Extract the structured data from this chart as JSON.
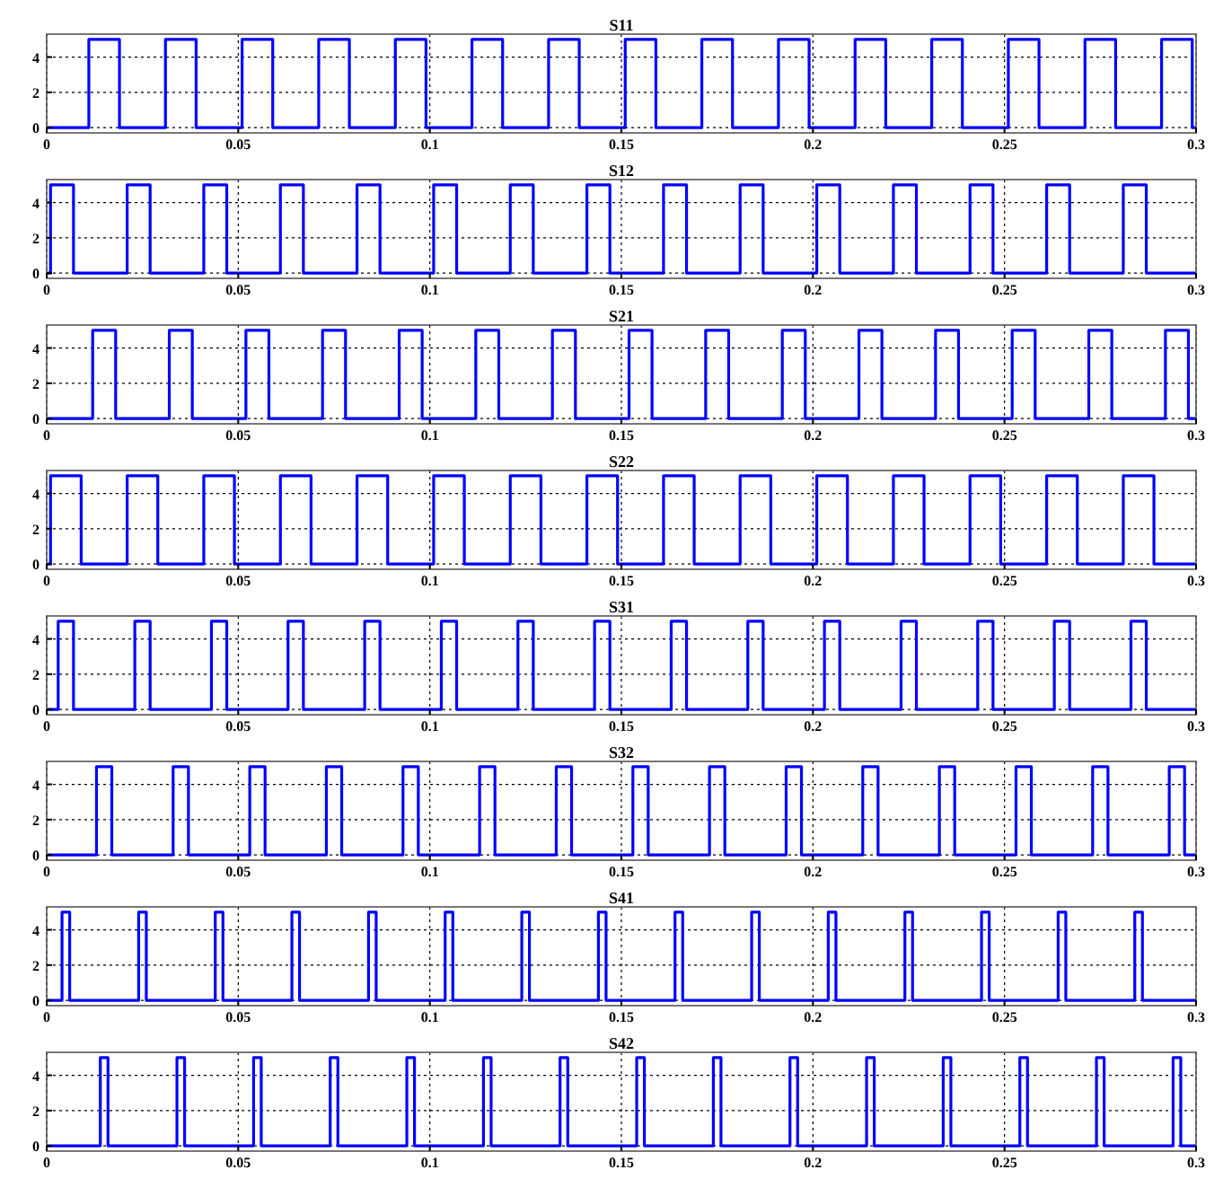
{
  "chart_data": [
    {
      "type": "step",
      "title": "S11",
      "color": "#0000ff",
      "xlim": [
        0,
        0.3
      ],
      "ylim": [
        -0.3,
        5.3
      ],
      "xticks": [
        0,
        0.05,
        0.1,
        0.15,
        0.2,
        0.25,
        0.3
      ],
      "yticks": [
        0,
        2,
        4
      ],
      "grid": true,
      "x": [
        0,
        0.011,
        0.019,
        0.031,
        0.039,
        0.051,
        0.059,
        0.071,
        0.079,
        0.091,
        0.099,
        0.111,
        0.119,
        0.131,
        0.139,
        0.151,
        0.159,
        0.171,
        0.179,
        0.191,
        0.199,
        0.211,
        0.219,
        0.231,
        0.239,
        0.251,
        0.259,
        0.271,
        0.279,
        0.291,
        0.299,
        0.3
      ],
      "values": [
        0,
        5,
        0,
        5,
        0,
        5,
        0,
        5,
        0,
        5,
        0,
        5,
        0,
        5,
        0,
        5,
        0,
        5,
        0,
        5,
        0,
        5,
        0,
        5,
        0,
        5,
        0,
        5,
        0,
        5,
        0,
        0
      ]
    },
    {
      "type": "step",
      "title": "S12",
      "color": "#0000ff",
      "xlim": [
        0,
        0.3
      ],
      "ylim": [
        -0.3,
        5.3
      ],
      "xticks": [
        0,
        0.05,
        0.1,
        0.15,
        0.2,
        0.25,
        0.3
      ],
      "yticks": [
        0,
        2,
        4
      ],
      "grid": true,
      "x": [
        0,
        0.001,
        0.007,
        0.021,
        0.027,
        0.041,
        0.047,
        0.061,
        0.067,
        0.081,
        0.087,
        0.101,
        0.107,
        0.121,
        0.127,
        0.141,
        0.147,
        0.161,
        0.167,
        0.181,
        0.187,
        0.201,
        0.207,
        0.221,
        0.227,
        0.241,
        0.247,
        0.261,
        0.267,
        0.281,
        0.287,
        0.3
      ],
      "values": [
        0,
        5,
        0,
        5,
        0,
        5,
        0,
        5,
        0,
        5,
        0,
        5,
        0,
        5,
        0,
        5,
        0,
        5,
        0,
        5,
        0,
        5,
        0,
        5,
        0,
        5,
        0,
        5,
        0,
        5,
        0,
        0
      ]
    },
    {
      "type": "step",
      "title": "S21",
      "color": "#0000ff",
      "xlim": [
        0,
        0.3
      ],
      "ylim": [
        -0.3,
        5.3
      ],
      "xticks": [
        0,
        0.05,
        0.1,
        0.15,
        0.2,
        0.25,
        0.3
      ],
      "yticks": [
        0,
        2,
        4
      ],
      "grid": true,
      "x": [
        0,
        0.012,
        0.018,
        0.032,
        0.038,
        0.052,
        0.058,
        0.072,
        0.078,
        0.092,
        0.098,
        0.112,
        0.118,
        0.132,
        0.138,
        0.152,
        0.158,
        0.172,
        0.178,
        0.192,
        0.198,
        0.212,
        0.218,
        0.232,
        0.238,
        0.252,
        0.258,
        0.272,
        0.278,
        0.292,
        0.298,
        0.3
      ],
      "values": [
        0,
        5,
        0,
        5,
        0,
        5,
        0,
        5,
        0,
        5,
        0,
        5,
        0,
        5,
        0,
        5,
        0,
        5,
        0,
        5,
        0,
        5,
        0,
        5,
        0,
        5,
        0,
        5,
        0,
        5,
        0,
        0
      ]
    },
    {
      "type": "step",
      "title": "S22",
      "color": "#0000ff",
      "xlim": [
        0,
        0.3
      ],
      "ylim": [
        -0.3,
        5.3
      ],
      "xticks": [
        0,
        0.05,
        0.1,
        0.15,
        0.2,
        0.25,
        0.3
      ],
      "yticks": [
        0,
        2,
        4
      ],
      "grid": true,
      "x": [
        0,
        0.001,
        0.009,
        0.021,
        0.029,
        0.041,
        0.049,
        0.061,
        0.069,
        0.081,
        0.089,
        0.101,
        0.109,
        0.121,
        0.129,
        0.141,
        0.149,
        0.161,
        0.169,
        0.181,
        0.189,
        0.201,
        0.209,
        0.221,
        0.229,
        0.241,
        0.249,
        0.261,
        0.269,
        0.281,
        0.289,
        0.3
      ],
      "values": [
        0,
        5,
        0,
        5,
        0,
        5,
        0,
        5,
        0,
        5,
        0,
        5,
        0,
        5,
        0,
        5,
        0,
        5,
        0,
        5,
        0,
        5,
        0,
        5,
        0,
        5,
        0,
        5,
        0,
        5,
        0,
        0
      ]
    },
    {
      "type": "step",
      "title": "S31",
      "color": "#0000ff",
      "xlim": [
        0,
        0.3
      ],
      "ylim": [
        -0.3,
        5.3
      ],
      "xticks": [
        0,
        0.05,
        0.1,
        0.15,
        0.2,
        0.25,
        0.3
      ],
      "yticks": [
        0,
        2,
        4
      ],
      "grid": true,
      "x": [
        0,
        0.003,
        0.007,
        0.023,
        0.027,
        0.043,
        0.047,
        0.063,
        0.067,
        0.083,
        0.087,
        0.103,
        0.107,
        0.123,
        0.127,
        0.143,
        0.147,
        0.163,
        0.167,
        0.183,
        0.187,
        0.203,
        0.207,
        0.223,
        0.227,
        0.243,
        0.247,
        0.263,
        0.267,
        0.283,
        0.287,
        0.3
      ],
      "values": [
        0,
        5,
        0,
        5,
        0,
        5,
        0,
        5,
        0,
        5,
        0,
        5,
        0,
        5,
        0,
        5,
        0,
        5,
        0,
        5,
        0,
        5,
        0,
        5,
        0,
        5,
        0,
        5,
        0,
        5,
        0,
        0
      ]
    },
    {
      "type": "step",
      "title": "S32",
      "color": "#0000ff",
      "xlim": [
        0,
        0.3
      ],
      "ylim": [
        -0.3,
        5.3
      ],
      "xticks": [
        0,
        0.05,
        0.1,
        0.15,
        0.2,
        0.25,
        0.3
      ],
      "yticks": [
        0,
        2,
        4
      ],
      "grid": true,
      "x": [
        0,
        0.013,
        0.017,
        0.033,
        0.037,
        0.053,
        0.057,
        0.073,
        0.077,
        0.093,
        0.097,
        0.113,
        0.117,
        0.133,
        0.137,
        0.153,
        0.157,
        0.173,
        0.177,
        0.193,
        0.197,
        0.213,
        0.217,
        0.233,
        0.237,
        0.253,
        0.257,
        0.273,
        0.277,
        0.293,
        0.297,
        0.3
      ],
      "values": [
        0,
        5,
        0,
        5,
        0,
        5,
        0,
        5,
        0,
        5,
        0,
        5,
        0,
        5,
        0,
        5,
        0,
        5,
        0,
        5,
        0,
        5,
        0,
        5,
        0,
        5,
        0,
        5,
        0,
        5,
        0,
        0
      ]
    },
    {
      "type": "step",
      "title": "S41",
      "color": "#0000ff",
      "xlim": [
        0,
        0.3
      ],
      "ylim": [
        -0.3,
        5.3
      ],
      "xticks": [
        0,
        0.05,
        0.1,
        0.15,
        0.2,
        0.25,
        0.3
      ],
      "yticks": [
        0,
        2,
        4
      ],
      "grid": true,
      "x": [
        0,
        0.004,
        0.006,
        0.024,
        0.026,
        0.044,
        0.046,
        0.064,
        0.066,
        0.084,
        0.086,
        0.104,
        0.106,
        0.124,
        0.126,
        0.144,
        0.146,
        0.164,
        0.166,
        0.184,
        0.186,
        0.204,
        0.206,
        0.224,
        0.226,
        0.244,
        0.246,
        0.264,
        0.266,
        0.284,
        0.286,
        0.3
      ],
      "values": [
        0,
        5,
        0,
        5,
        0,
        5,
        0,
        5,
        0,
        5,
        0,
        5,
        0,
        5,
        0,
        5,
        0,
        5,
        0,
        5,
        0,
        5,
        0,
        5,
        0,
        5,
        0,
        5,
        0,
        5,
        0,
        0
      ]
    },
    {
      "type": "step",
      "title": "S42",
      "color": "#0000ff",
      "xlim": [
        0,
        0.3
      ],
      "ylim": [
        -0.3,
        5.3
      ],
      "xticks": [
        0,
        0.05,
        0.1,
        0.15,
        0.2,
        0.25,
        0.3
      ],
      "yticks": [
        0,
        2,
        4
      ],
      "grid": true,
      "x": [
        0,
        0.014,
        0.016,
        0.034,
        0.036,
        0.054,
        0.056,
        0.074,
        0.076,
        0.094,
        0.096,
        0.114,
        0.116,
        0.134,
        0.136,
        0.154,
        0.156,
        0.174,
        0.176,
        0.194,
        0.196,
        0.214,
        0.216,
        0.234,
        0.236,
        0.254,
        0.256,
        0.274,
        0.276,
        0.294,
        0.296,
        0.3
      ],
      "values": [
        0,
        5,
        0,
        5,
        0,
        5,
        0,
        5,
        0,
        5,
        0,
        5,
        0,
        5,
        0,
        5,
        0,
        5,
        0,
        5,
        0,
        5,
        0,
        5,
        0,
        5,
        0,
        5,
        0,
        5,
        0,
        0
      ]
    }
  ]
}
